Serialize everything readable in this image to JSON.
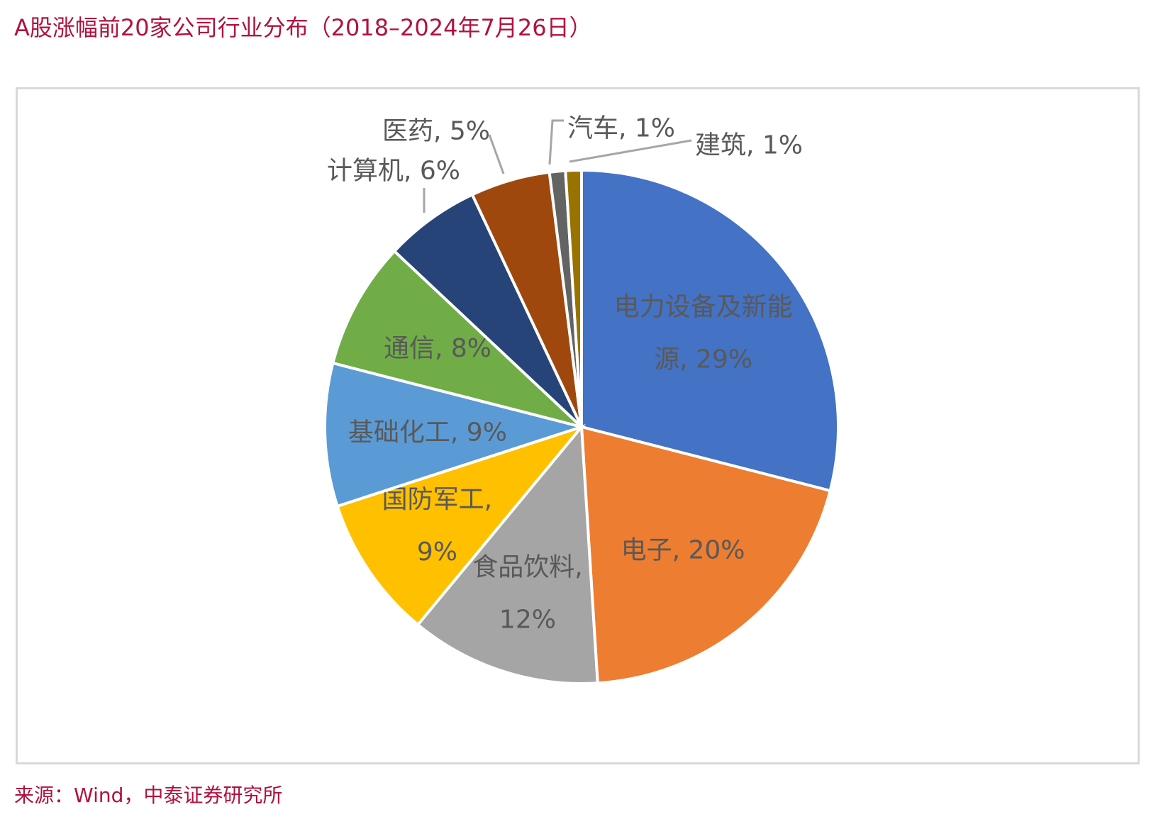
{
  "title": "A股涨幅前20家公司行业分布（2018–2024年7月26日）",
  "source": "来源：Wind，中泰证券研究所",
  "chart_data": {
    "type": "pie",
    "unit": "%",
    "slices": [
      {
        "name": "电力设备及新能源",
        "value": 29,
        "label_lines": [
          "电力设备及新能",
          "源, 29%"
        ],
        "color": "#4472C4"
      },
      {
        "name": "电子",
        "value": 20,
        "label_lines": [
          "电子, 20%"
        ],
        "color": "#ED7D31"
      },
      {
        "name": "食品饮料",
        "value": 12,
        "label_lines": [
          "食品饮料,",
          "12%"
        ],
        "color": "#A5A5A5"
      },
      {
        "name": "国防军工",
        "value": 9,
        "label_lines": [
          "国防军工,",
          "9%"
        ],
        "color": "#FFC000"
      },
      {
        "name": "基础化工",
        "value": 9,
        "label_lines": [
          "基础化工, 9%"
        ],
        "color": "#5B9BD5"
      },
      {
        "name": "通信",
        "value": 8,
        "label_lines": [
          "通信, 8%"
        ],
        "color": "#70AD47"
      },
      {
        "name": "计算机",
        "value": 6,
        "label_lines": [
          "计算机, 6%"
        ],
        "color": "#264478"
      },
      {
        "name": "医药",
        "value": 5,
        "label_lines": [
          "医药, 5%"
        ],
        "color": "#9E480E"
      },
      {
        "name": "汽车",
        "value": 1,
        "label_lines": [
          "汽车, 1%"
        ],
        "color": "#636363"
      },
      {
        "name": "建筑",
        "value": 1,
        "label_lines": [
          "建筑, 1%"
        ],
        "color": "#997300"
      }
    ]
  }
}
